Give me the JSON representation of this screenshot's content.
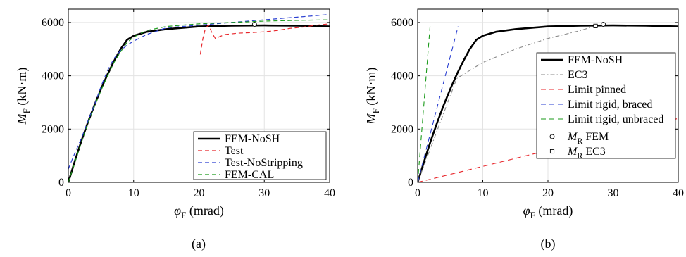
{
  "chart_data": [
    {
      "type": "line",
      "panel_label": "(a)",
      "xlabel": {
        "main": "φ",
        "sub": "F",
        "unit": " (mrad)"
      },
      "ylabel": {
        "main": "M",
        "sub": "F",
        "unit": " (kN·m)"
      },
      "xlim": [
        0,
        40
      ],
      "ylim": [
        0,
        6500
      ],
      "xticks": [
        0,
        10,
        20,
        30,
        40
      ],
      "yticks": [
        0,
        2000,
        4000,
        6000
      ],
      "grid": true,
      "legend_position": "bottom-right",
      "series": [
        {
          "name": "FEM-NoSH",
          "color": "#000000",
          "dash": "",
          "width": 2.6,
          "x": [
            0,
            1,
            2,
            3,
            4,
            5,
            6,
            7,
            8,
            9,
            10,
            12,
            15,
            20,
            25,
            30,
            35,
            40
          ],
          "y": [
            0,
            800,
            1550,
            2250,
            2900,
            3500,
            4050,
            4550,
            5000,
            5350,
            5500,
            5650,
            5750,
            5850,
            5880,
            5890,
            5880,
            5850
          ]
        },
        {
          "name": "Test",
          "color": "#e8262b",
          "dash": "6,4",
          "width": 1.2,
          "x": [
            20.2,
            20.6,
            21.0,
            21.5,
            22,
            22.5,
            23,
            24,
            26,
            28,
            30,
            32,
            34,
            36,
            38,
            40
          ],
          "y": [
            4800,
            5400,
            5800,
            5900,
            5600,
            5400,
            5450,
            5550,
            5600,
            5620,
            5650,
            5700,
            5780,
            5830,
            5900,
            5950
          ]
        },
        {
          "name": "Test-NoStripping",
          "color": "#2a3fd1",
          "dash": "6,4",
          "width": 1.2,
          "x": [
            0,
            0.5,
            1,
            2,
            3,
            4,
            5,
            6,
            7,
            8,
            9,
            10,
            12,
            15,
            20,
            25,
            30,
            35,
            40
          ],
          "y": [
            500,
            800,
            1100,
            1650,
            2300,
            2900,
            3600,
            4200,
            4650,
            4950,
            5150,
            5300,
            5550,
            5800,
            5900,
            6000,
            6100,
            6200,
            6300
          ]
        },
        {
          "name": "FEM-CAL",
          "color": "#1a9a1a",
          "dash": "6,4",
          "width": 1.2,
          "x": [
            0,
            1,
            2,
            3,
            4,
            5,
            6,
            7,
            8,
            9,
            10,
            12,
            15,
            20,
            25,
            30,
            35,
            40
          ],
          "y": [
            0,
            750,
            1500,
            2200,
            2850,
            3450,
            4000,
            4500,
            4900,
            5250,
            5450,
            5700,
            5850,
            5950,
            6000,
            6050,
            6080,
            6100
          ]
        }
      ],
      "markers": [
        {
          "name": "FEM marker",
          "shape": "circle",
          "x": 28.5,
          "y": 5930
        }
      ]
    },
    {
      "type": "line",
      "panel_label": "(b)",
      "xlabel": {
        "main": "φ",
        "sub": "F",
        "unit": " (mrad)"
      },
      "ylabel": {
        "main": "M",
        "sub": "F",
        "unit": " (kN·m)"
      },
      "xlim": [
        0,
        40
      ],
      "ylim": [
        0,
        6500
      ],
      "xticks": [
        0,
        10,
        20,
        30,
        40
      ],
      "yticks": [
        0,
        2000,
        4000,
        6000
      ],
      "grid": true,
      "legend_position": "middle-right",
      "series": [
        {
          "name": "FEM-NoSH",
          "color": "#000000",
          "dash": "",
          "width": 2.6,
          "x": [
            0,
            1,
            2,
            3,
            4,
            5,
            6,
            7,
            8,
            9,
            10,
            12,
            15,
            20,
            25,
            30,
            35,
            40
          ],
          "y": [
            0,
            800,
            1550,
            2250,
            2900,
            3500,
            4050,
            4550,
            5000,
            5350,
            5500,
            5650,
            5750,
            5850,
            5880,
            5890,
            5880,
            5850
          ]
        },
        {
          "name": "EC3",
          "color": "#888888",
          "dash": "6,3,1.5,3",
          "width": 1.1,
          "x": [
            0,
            6,
            10,
            15,
            20,
            25,
            27.3
          ],
          "y": [
            0,
            3900,
            4500,
            5000,
            5400,
            5700,
            5870
          ]
        },
        {
          "name": "Limit pinned",
          "color": "#e8262b",
          "dash": "7,5",
          "width": 1.1,
          "x": [
            0,
            40
          ],
          "y": [
            0,
            2400
          ]
        },
        {
          "name": "Limit rigid, braced",
          "color": "#2a3fd1",
          "dash": "7,5",
          "width": 1.1,
          "x": [
            0,
            6.2
          ],
          "y": [
            0,
            5850
          ]
        },
        {
          "name": "Limit rigid, unbraced",
          "color": "#1a9a1a",
          "dash": "7,5",
          "width": 1.1,
          "x": [
            0,
            1.9
          ],
          "y": [
            0,
            5850
          ]
        }
      ],
      "markers": [
        {
          "name": "M_R FEM",
          "shape": "circle",
          "x": 28.5,
          "y": 5930
        },
        {
          "name": "M_R EC3",
          "shape": "square",
          "x": 27.3,
          "y": 5870
        }
      ],
      "legend_markers": [
        {
          "shape": "circle",
          "main": "M",
          "sub": "R",
          "suffix": " FEM"
        },
        {
          "shape": "square",
          "main": "M",
          "sub": "R",
          "suffix": " EC3"
        }
      ]
    }
  ]
}
